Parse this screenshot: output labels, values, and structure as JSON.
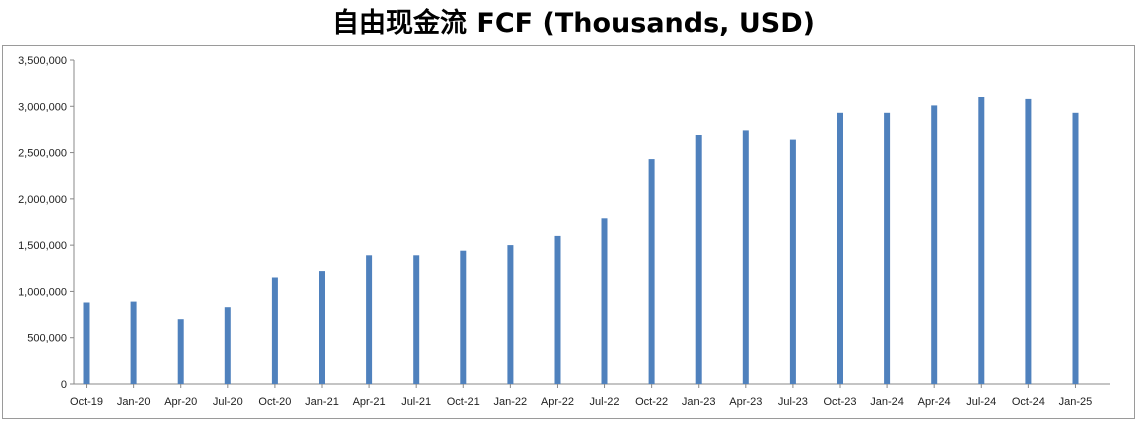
{
  "chart_data": {
    "type": "bar",
    "title": "自由现金流 FCF (Thousands, USD)",
    "xlabel": "",
    "ylabel": "",
    "categories": [
      "Oct-19",
      "Jan-20",
      "Apr-20",
      "Jul-20",
      "Oct-20",
      "Jan-21",
      "Apr-21",
      "Jul-21",
      "Oct-21",
      "Jan-22",
      "Apr-22",
      "Jul-22",
      "Oct-22",
      "Jan-23",
      "Apr-23",
      "Jul-23",
      "Oct-23",
      "Jan-24",
      "Apr-24",
      "Jul-24",
      "Oct-24",
      "Jan-25"
    ],
    "values": [
      880000,
      890000,
      700000,
      830000,
      1150000,
      1220000,
      1390000,
      1390000,
      1440000,
      1500000,
      1600000,
      1790000,
      2430000,
      2690000,
      2740000,
      2640000,
      2930000,
      2930000,
      3010000,
      3100000,
      3080000,
      2930000
    ],
    "ylim": [
      0,
      3500000
    ],
    "yticks": [
      0,
      500000,
      1000000,
      1500000,
      2000000,
      2500000,
      3000000,
      3500000
    ],
    "ytick_labels": [
      "0",
      "500,000",
      "1,000,000",
      "1,500,000",
      "2,000,000",
      "2,500,000",
      "3,000,000",
      "3,500,000"
    ],
    "bar_color": "#4f81bd",
    "grid": false,
    "legend": "none"
  }
}
